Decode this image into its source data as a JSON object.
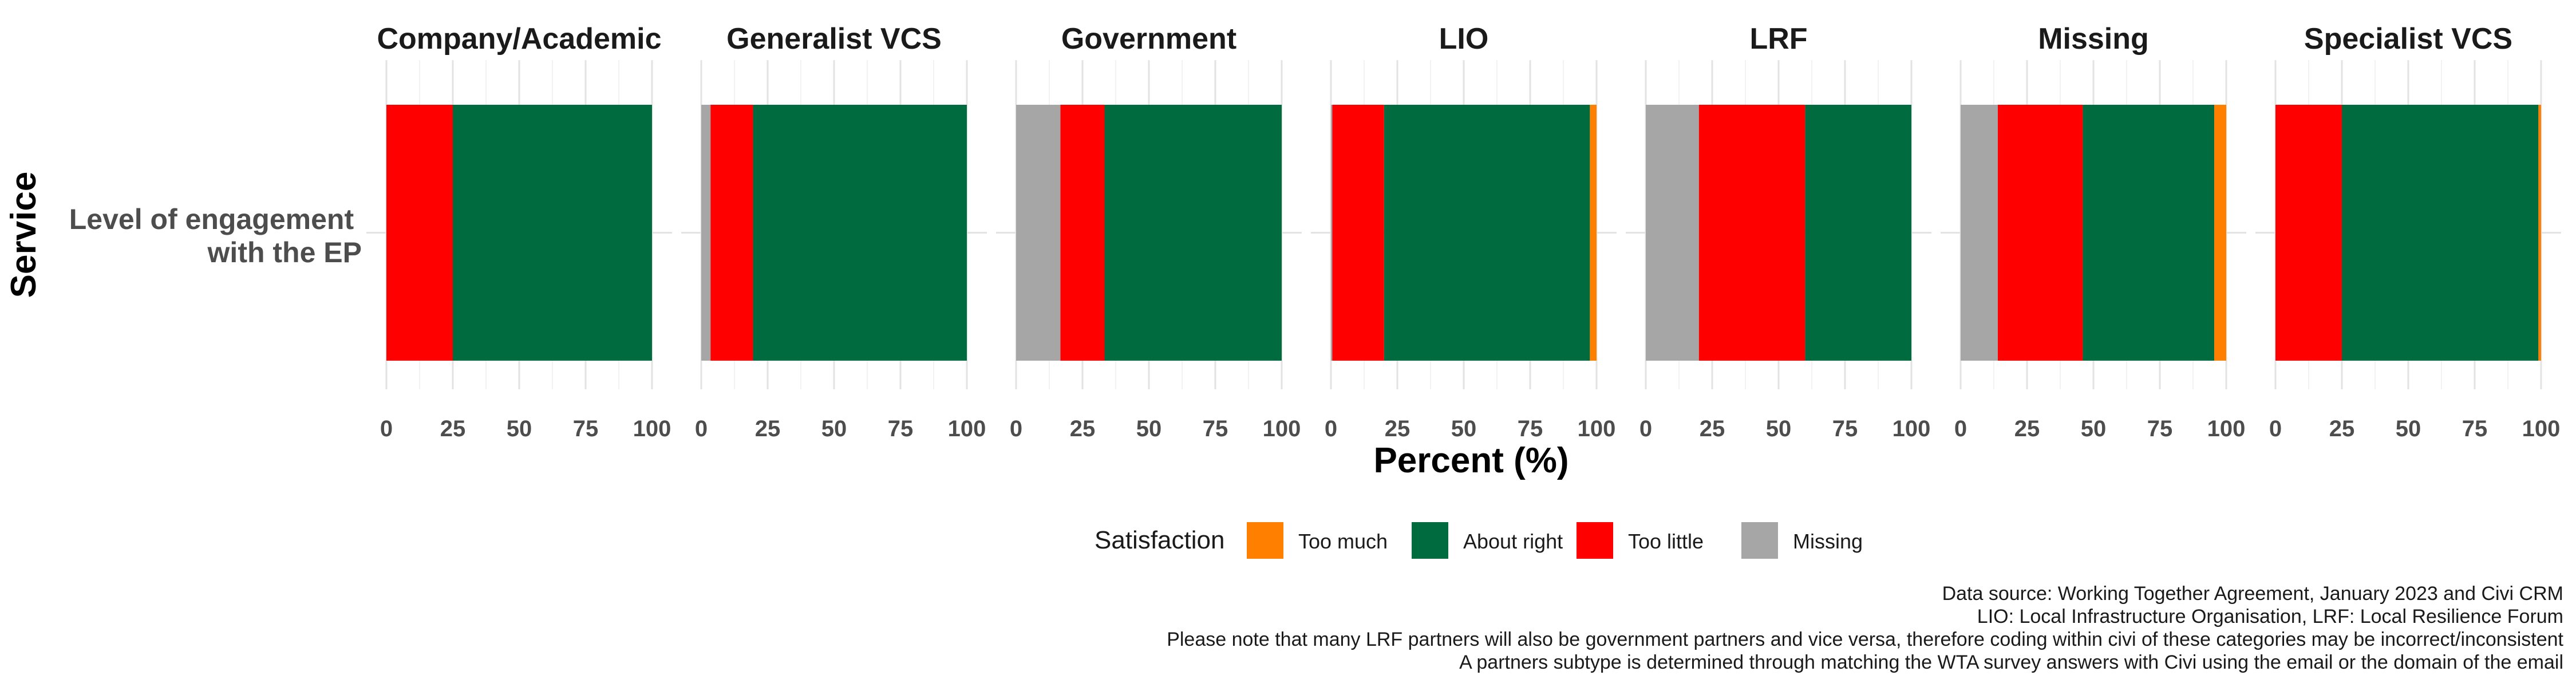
{
  "chart_data": {
    "type": "bar",
    "orientation": "horizontal",
    "stacked": true,
    "facet_variable": "Partner subtype",
    "xlabel": "Percent (%)",
    "ylabel": "Service",
    "xlim": [
      0,
      100
    ],
    "x_ticks": [
      "0",
      "25",
      "50",
      "75",
      "100"
    ],
    "categories": [
      "Level of engagement\nwith the EP"
    ],
    "category_lines": [
      "Level of engagement",
      "with the EP"
    ],
    "legend": {
      "title": "Satisfaction",
      "position": "bottom",
      "entries": [
        {
          "label": "Too much",
          "color": "#FF7F00"
        },
        {
          "label": "About right",
          "color": "#006B3E"
        },
        {
          "label": "Too little",
          "color": "#FF0000"
        },
        {
          "label": "Missing",
          "color": "#A6A6A6"
        }
      ]
    },
    "stack_order": [
      "Missing",
      "Too little",
      "About right",
      "Too much"
    ],
    "colors": {
      "Too much": "#FF7F00",
      "About right": "#006B3E",
      "Too little": "#FF0000",
      "Missing": "#A6A6A6"
    },
    "facets": [
      {
        "name": "Company/Academic",
        "values": {
          "Missing": 0,
          "Too little": 25,
          "About right": 75,
          "Too much": 0
        }
      },
      {
        "name": "Generalist VCS",
        "values": {
          "Missing": 3.5,
          "Too little": 16,
          "About right": 80.5,
          "Too much": 0
        }
      },
      {
        "name": "Government",
        "values": {
          "Missing": 16.7,
          "Too little": 16.6,
          "About right": 66.7,
          "Too much": 0
        }
      },
      {
        "name": "LIO",
        "values": {
          "Missing": 0.5,
          "Too little": 19.5,
          "About right": 77.5,
          "Too much": 2.5
        }
      },
      {
        "name": "LRF",
        "values": {
          "Missing": 20,
          "Too little": 40,
          "About right": 40,
          "Too much": 0
        }
      },
      {
        "name": "Missing",
        "values": {
          "Missing": 14,
          "Too little": 32,
          "About right": 49.5,
          "Too much": 4.5
        }
      },
      {
        "name": "Specialist VCS",
        "values": {
          "Missing": 0,
          "Too little": 25,
          "About right": 74,
          "Too much": 1
        }
      }
    ]
  },
  "caption": [
    "Data source: Working Together Agreement, January 2023 and Civi CRM",
    "LIO: Local Infrastructure Organisation, LRF: Local Resilience Forum",
    "Please note that many LRF partners will also be government partners and vice versa, therefore coding within civi of these categories may be incorrect/inconsistent",
    "A partners subtype is determined through matching the WTA survey answers with Civi using the email or the domain of the email"
  ]
}
